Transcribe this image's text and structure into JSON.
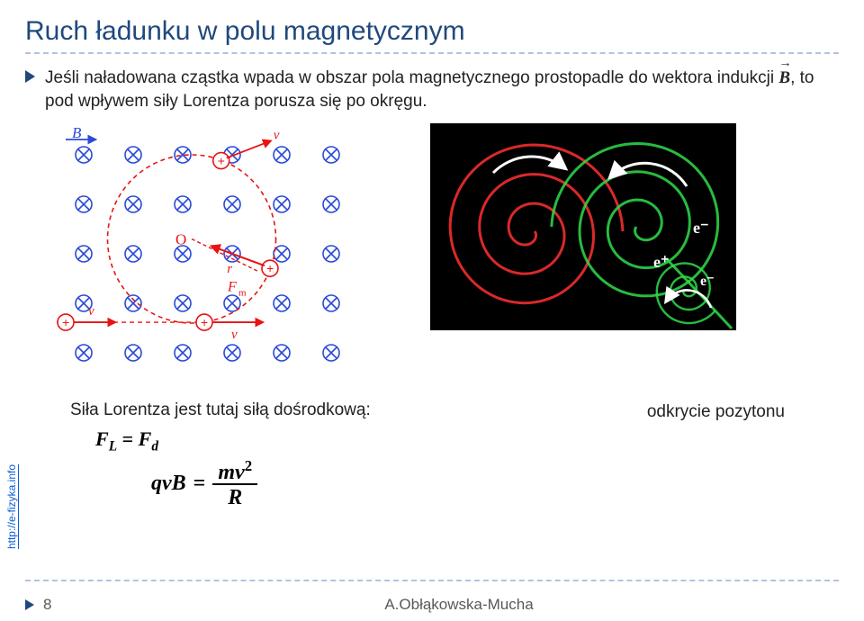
{
  "title": "Ruch ładunku w polu magnetycznym",
  "para": {
    "pre": "Jeśli naładowana cząstka wpada w obszar pola magnetycznego prostopadle do wektora indukcji ",
    "vec": "B",
    "post": ", to pod wpływem siły Lorentza porusza się po okręgu."
  },
  "diagram": {
    "grid": {
      "cols": 6,
      "rows": 5,
      "step": 55,
      "ox": 35,
      "oy": 35
    },
    "B_label": "B",
    "v_label": "v",
    "O_label": "O",
    "r_label": "r",
    "F_label": "F",
    "F_sub": "m",
    "plus_label": "+",
    "colors": {
      "field": "#2a4ad7",
      "orbit": "#e81313",
      "text_red": "#e81313",
      "text_blue": "#2a4ad7",
      "bg": "#ffffff"
    }
  },
  "spiral": {
    "bg": "#000000",
    "pos_color": "#ff3030",
    "neg_color": "#2fdc4a",
    "arrow_color": "#ffffff",
    "label_pos": "e⁺",
    "label_neg1": "e⁻",
    "label_neg2": "e⁻"
  },
  "lorentz": {
    "caption": "Siła Lorentza jest tutaj siłą dośrodkową:",
    "eq1": {
      "lhs": "F",
      "lhs_sub": "L",
      "rhs": "F",
      "rhs_sub": "d"
    },
    "eq2": {
      "lhs": "qvB",
      "num": "mv",
      "num_sup": "2",
      "den": "R"
    }
  },
  "discovery": "odkrycie pozytonu",
  "side_link": "http://e-fizyka.info",
  "footer": {
    "page": "8",
    "author": "A.Obłąkowska-Mucha"
  }
}
